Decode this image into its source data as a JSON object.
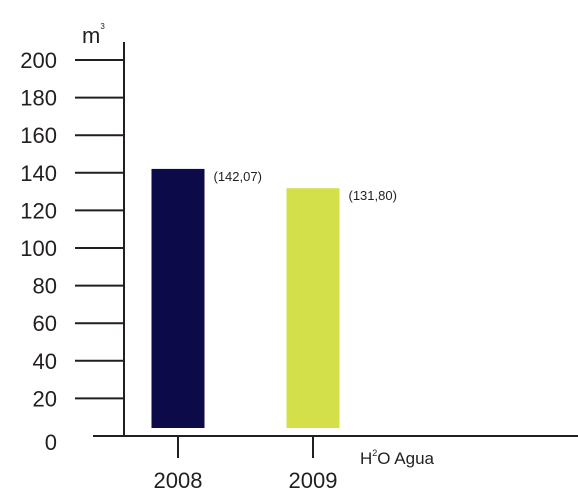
{
  "chart_data": {
    "type": "bar",
    "categories": [
      "2008",
      "2009"
    ],
    "series": [
      {
        "values": [
          142.07,
          131.8
        ],
        "data_labels": [
          "(142,07)",
          "(131,80)"
        ]
      }
    ],
    "bar_colors": [
      "#0d0a4a",
      "#d4e04a"
    ],
    "axis_color": "#231f20",
    "ylabel": {
      "base": "m",
      "superscript": "3"
    },
    "xlabel": {
      "part1": "H",
      "superscript": "2",
      "part2": "O Agua"
    },
    "y_ticks": [
      "0",
      "20",
      "40",
      "60",
      "80",
      "100",
      "120",
      "140",
      "160",
      "180",
      "200"
    ],
    "ylim": [
      0,
      200
    ],
    "grid": false
  }
}
